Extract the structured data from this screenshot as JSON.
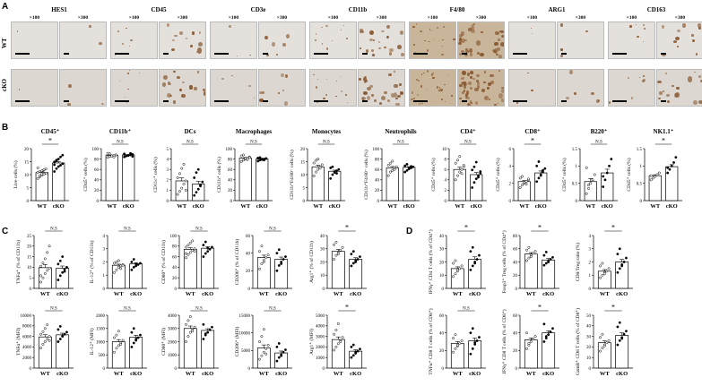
{
  "panels": {
    "A": "A",
    "B": "B",
    "C": "C",
    "D": "D"
  },
  "ihc": {
    "markers": [
      "HES1",
      "CD45",
      "CD3e",
      "CD11b",
      "F4/80",
      "ARG1",
      "CD163"
    ],
    "magnifications": [
      "×100",
      "×300"
    ],
    "rows": [
      "WT",
      "cKO"
    ],
    "colors": {
      "wt_bg": "#e4e1dc",
      "cko_bg": "#dcd7d0",
      "stain": "#8a5a33",
      "dense_bg": "#c9b59a"
    }
  },
  "groups": [
    "WT",
    "cKO"
  ],
  "chart_data": [
    {
      "id": "b1",
      "type": "bar",
      "title": "CD45⁺",
      "ylabel": "Live cells (%)",
      "ylim": [
        0,
        20
      ],
      "yticks": [
        0,
        5,
        10,
        15,
        20
      ],
      "categories": [
        "WT",
        "cKO"
      ],
      "values": [
        10.8,
        14.5
      ],
      "sig": "*",
      "points": [
        [
          8.5,
          9.2,
          9.8,
          10.1,
          10.5,
          10.9,
          11.2,
          11.5,
          11.8,
          12.2,
          12.6,
          9.6,
          10.3,
          11.9
        ],
        [
          11.2,
          12.3,
          13.1,
          13.6,
          14.2,
          14.9,
          15.3,
          16.0,
          16.8,
          17.5,
          13.8,
          15.6
        ]
      ]
    },
    {
      "id": "b2",
      "type": "bar",
      "title": "CD11b⁺",
      "ylabel": "CD45⁺ cells (%)",
      "ylim": [
        0,
        100
      ],
      "yticks": [
        0,
        20,
        40,
        60,
        80,
        100
      ],
      "categories": [
        "WT",
        "cKO"
      ],
      "values": [
        87,
        88
      ],
      "sig": "N.S",
      "points": [
        [
          83,
          85,
          86,
          87,
          88,
          89,
          90,
          86,
          84,
          88,
          91
        ],
        [
          84,
          86,
          87,
          88,
          89,
          90,
          86,
          87,
          91,
          85,
          89
        ]
      ]
    },
    {
      "id": "b3",
      "type": "bar",
      "title": "DCs",
      "ylabel": "CD11c⁺ cells (%)",
      "ylim": [
        0,
        5
      ],
      "yticks": [
        0,
        1,
        2,
        3,
        4,
        5
      ],
      "categories": [
        "WT",
        "cKO"
      ],
      "values": [
        1.9,
        1.6
      ],
      "sig": "N.S",
      "points": [
        [
          0.6,
          0.9,
          1.2,
          1.6,
          1.9,
          2.2,
          2.6,
          3.1,
          3.5,
          1.0
        ],
        [
          0.5,
          0.8,
          1.1,
          1.4,
          1.8,
          2.2,
          2.7,
          3.0,
          1.5
        ]
      ]
    },
    {
      "id": "b4",
      "type": "bar",
      "title": "Macrophages",
      "ylabel": "CD11b⁺ cells (%)",
      "ylim": [
        0,
        100
      ],
      "yticks": [
        0,
        20,
        40,
        60,
        80,
        100
      ],
      "categories": [
        "WT",
        "cKO"
      ],
      "values": [
        82,
        80
      ],
      "sig": "N.S",
      "points": [
        [
          75,
          78,
          80,
          82,
          84,
          86,
          88,
          81,
          79,
          83
        ],
        [
          76,
          78,
          79,
          80,
          81,
          82,
          83,
          80,
          78,
          81
        ]
      ]
    },
    {
      "id": "b5",
      "type": "bar",
      "title": "Monocytes",
      "ylabel": "CD11b⁺F4/80⁻ cells (%)",
      "ylim": [
        0,
        20
      ],
      "yticks": [
        0,
        5,
        10,
        15,
        20
      ],
      "categories": [
        "WT",
        "cKO"
      ],
      "values": [
        13.0,
        11.3
      ],
      "sig": "N.S",
      "points": [
        [
          9.5,
          11,
          12,
          13,
          13.8,
          14.5,
          15.5,
          16,
          12.5
        ],
        [
          8.5,
          10,
          10.8,
          11.5,
          12,
          12.6,
          13,
          11,
          10.5
        ]
      ]
    },
    {
      "id": "b6",
      "type": "bar",
      "title": "Neutrophils",
      "ylabel": "CD11b⁺F4/80⁻ cells (%)",
      "ylim": [
        0,
        100
      ],
      "yticks": [
        0,
        20,
        40,
        60,
        80,
        100
      ],
      "categories": [
        "WT",
        "cKO"
      ],
      "values": [
        63,
        64
      ],
      "sig": "N.S",
      "points": [
        [
          48,
          55,
          58,
          62,
          65,
          68,
          72,
          76,
          60
        ],
        [
          55,
          58,
          61,
          63,
          65,
          67,
          70,
          62,
          66
        ]
      ]
    },
    {
      "id": "b7",
      "type": "bar",
      "title": "CD4⁺",
      "ylabel": "CD45⁺ cells (%)",
      "ylim": [
        0,
        10
      ],
      "yticks": [
        0,
        2,
        4,
        6,
        8,
        10
      ],
      "categories": [
        "WT",
        "cKO"
      ],
      "values": [
        6.0,
        5.0
      ],
      "sig": "N.S",
      "points": [
        [
          4.0,
          4.8,
          5.5,
          6.0,
          6.5,
          7.2,
          7.8,
          8.5,
          5.2,
          6.8
        ],
        [
          2.5,
          3.5,
          4.2,
          4.8,
          5.3,
          5.9,
          6.5,
          7.4,
          4.5,
          5.6
        ]
      ]
    },
    {
      "id": "b8",
      "type": "bar",
      "title": "CD8⁺",
      "ylabel": "CD45⁺ cells (%)",
      "ylim": [
        0,
        6
      ],
      "yticks": [
        0,
        2,
        4,
        6
      ],
      "categories": [
        "WT",
        "cKO"
      ],
      "values": [
        2.2,
        3.2
      ],
      "sig": "*",
      "points": [
        [
          1.5,
          1.8,
          2.0,
          2.2,
          2.4,
          2.6,
          2.8,
          2.1,
          1.9,
          2.5
        ],
        [
          2.2,
          2.6,
          3.0,
          3.3,
          3.7,
          4.0,
          4.5,
          2.9,
          3.5
        ]
      ]
    },
    {
      "id": "b9",
      "type": "bar",
      "title": "B220⁺",
      "ylabel": "CD45⁺ cells (%)",
      "ylim": [
        0,
        1.5
      ],
      "yticks": [
        0,
        0.5,
        1.0,
        1.5
      ],
      "categories": [
        "WT",
        "cKO"
      ],
      "values": [
        0.55,
        0.8
      ],
      "sig": "N.S",
      "points": [
        [
          0.2,
          0.35,
          0.5,
          0.6,
          0.75,
          0.95,
          0.45
        ],
        [
          0.4,
          0.6,
          0.8,
          1.0,
          1.2,
          0.7
        ]
      ]
    },
    {
      "id": "b10",
      "type": "bar",
      "title": "NK1.1⁺",
      "ylabel": "CD45⁺ cells (%)",
      "ylim": [
        0,
        1.5
      ],
      "yticks": [
        0,
        0.5,
        1.0,
        1.5
      ],
      "categories": [
        "WT",
        "cKO"
      ],
      "values": [
        0.72,
        0.98
      ],
      "sig": "*",
      "points": [
        [
          0.6,
          0.65,
          0.7,
          0.75,
          0.8,
          0.72
        ],
        [
          0.8,
          0.9,
          1.0,
          1.1,
          1.25,
          0.95
        ]
      ]
    },
    {
      "id": "c1",
      "type": "bar",
      "ylabel": "TNFα⁺ (% of CD11b)",
      "ylim": [
        0,
        25
      ],
      "yticks": [
        0,
        5,
        10,
        15,
        20,
        25
      ],
      "categories": [
        "WT",
        "cKO"
      ],
      "values": [
        9.8,
        9.5
      ],
      "sig": "N.S",
      "points": [
        [
          3,
          5,
          7,
          8.5,
          9.5,
          10.5,
          12,
          14,
          17,
          20,
          6
        ],
        [
          4,
          6,
          7.5,
          9,
          10,
          11.5,
          13,
          15,
          8
        ]
      ]
    },
    {
      "id": "c2",
      "type": "bar",
      "ylabel": "IL-12⁺ (% of CD11b)",
      "ylim": [
        0,
        4
      ],
      "yticks": [
        0,
        1,
        2,
        3,
        4
      ],
      "categories": [
        "WT",
        "cKO"
      ],
      "values": [
        1.75,
        1.85
      ],
      "sig": "N.S",
      "points": [
        [
          1.2,
          1.4,
          1.6,
          1.7,
          1.8,
          1.9,
          2.0,
          2.1,
          1.5,
          1.75
        ],
        [
          1.4,
          1.6,
          1.7,
          1.8,
          1.9,
          2.0,
          2.2,
          1.85
        ]
      ]
    },
    {
      "id": "c3",
      "type": "bar",
      "ylabel": "CD80⁺ (% of CD11b)",
      "ylim": [
        0,
        100
      ],
      "yticks": [
        0,
        20,
        40,
        60,
        80,
        100
      ],
      "categories": [
        "WT",
        "cKO"
      ],
      "values": [
        74,
        76
      ],
      "sig": "N.S",
      "points": [
        [
          58,
          64,
          68,
          72,
          75,
          78,
          82,
          86,
          90,
          70,
          66
        ],
        [
          60,
          66,
          70,
          74,
          78,
          82,
          88,
          76
        ]
      ]
    },
    {
      "id": "c4",
      "type": "bar",
      "ylabel": "CD206⁺ (% of CD11b)",
      "ylim": [
        0,
        60
      ],
      "yticks": [
        0,
        20,
        40,
        60
      ],
      "categories": [
        "WT",
        "cKO"
      ],
      "values": [
        35,
        33
      ],
      "sig": "N.S",
      "points": [
        [
          22,
          28,
          32,
          35,
          38,
          42,
          48,
          30
        ],
        [
          20,
          26,
          30,
          33,
          36,
          40,
          44,
          28
        ]
      ]
    },
    {
      "id": "c5",
      "type": "bar",
      "ylabel": "Arg1⁺ (% of CD11b)",
      "ylim": [
        0,
        40
      ],
      "yticks": [
        0,
        10,
        20,
        30,
        40
      ],
      "categories": [
        "WT",
        "cKO"
      ],
      "values": [
        28,
        22
      ],
      "sig": "*",
      "points": [
        [
          22,
          25,
          27,
          29,
          31,
          33,
          35,
          26
        ],
        [
          17,
          19,
          21,
          22,
          24,
          26,
          28,
          20
        ]
      ]
    },
    {
      "id": "c6",
      "type": "bar",
      "ylabel": "TNFα⁺ (MFI)",
      "ylim": [
        0,
        10000
      ],
      "yticks": [
        0,
        2000,
        4000,
        6000,
        8000,
        10000
      ],
      "categories": [
        "WT",
        "cKO"
      ],
      "values": [
        5900,
        6300
      ],
      "sig": "N.S",
      "points": [
        [
          3800,
          4500,
          5000,
          5500,
          6000,
          6400,
          6900,
          7500,
          8200,
          5200
        ],
        [
          5000,
          5500,
          6000,
          6400,
          6800,
          7300,
          7900,
          6100
        ]
      ]
    },
    {
      "id": "c7",
      "type": "bar",
      "ylabel": "IL-12⁺ (MFI)",
      "ylim": [
        0,
        2000
      ],
      "yticks": [
        0,
        500,
        1000,
        1500,
        2000
      ],
      "categories": [
        "WT",
        "cKO"
      ],
      "values": [
        1000,
        1170
      ],
      "sig": "N.S",
      "points": [
        [
          600,
          750,
          850,
          950,
          1050,
          1150,
          1250,
          1400,
          900
        ],
        [
          800,
          950,
          1050,
          1150,
          1250,
          1350,
          1500,
          1100
        ]
      ]
    },
    {
      "id": "c8",
      "type": "bar",
      "ylabel": "CD80⁺ (MFI)",
      "ylim": [
        0,
        4000
      ],
      "yticks": [
        0,
        1000,
        2000,
        3000,
        4000
      ],
      "categories": [
        "WT",
        "cKO"
      ],
      "values": [
        3000,
        2850
      ],
      "sig": "N.S",
      "points": [
        [
          2000,
          2400,
          2700,
          2900,
          3100,
          3300,
          3600,
          3900,
          2800
        ],
        [
          2200,
          2500,
          2700,
          2900,
          3100,
          3300,
          2600
        ]
      ]
    },
    {
      "id": "c9",
      "type": "bar",
      "ylabel": "CD206⁺ (MFI)",
      "ylim": [
        0,
        15000
      ],
      "yticks": [
        0,
        5000,
        10000,
        15000
      ],
      "categories": [
        "WT",
        "cKO"
      ],
      "values": [
        5700,
        4300
      ],
      "sig": "N.S",
      "points": [
        [
          2500,
          3500,
          4500,
          5500,
          6500,
          7500,
          9000,
          11000,
          4000
        ],
        [
          2000,
          3000,
          3800,
          4500,
          5200,
          6000,
          7000,
          3500
        ]
      ]
    },
    {
      "id": "c10",
      "type": "bar",
      "ylabel": "Arg1⁺ (MFI)",
      "ylim": [
        0,
        5000
      ],
      "yticks": [
        0,
        1000,
        2000,
        3000,
        4000,
        5000
      ],
      "categories": [
        "WT",
        "cKO"
      ],
      "values": [
        2700,
        1600
      ],
      "sig": "*",
      "points": [
        [
          1700,
          2000,
          2300,
          2600,
          2900,
          3200,
          3600,
          4200,
          2500
        ],
        [
          1000,
          1200,
          1400,
          1600,
          1800,
          2000,
          2200,
          1500
        ]
      ]
    },
    {
      "id": "d1",
      "type": "bar",
      "ylabel": "IFNγ⁺ CD4 T cells (% of CD4⁺)",
      "ylim": [
        0,
        40
      ],
      "yticks": [
        0,
        10,
        20,
        30,
        40
      ],
      "categories": [
        "WT",
        "cKO"
      ],
      "values": [
        15,
        22
      ],
      "sig": "*",
      "points": [
        [
          9,
          11,
          13,
          15,
          17,
          19,
          21,
          14
        ],
        [
          14,
          17,
          20,
          22,
          25,
          28,
          31,
          19
        ]
      ]
    },
    {
      "id": "d2",
      "type": "bar",
      "ylabel": "Foxp3⁺ Treg cells (% of CD4⁺)",
      "ylim": [
        0,
        80
      ],
      "yticks": [
        0,
        20,
        40,
        60,
        80
      ],
      "categories": [
        "WT",
        "cKO"
      ],
      "values": [
        52,
        43
      ],
      "sig": "*",
      "points": [
        [
          42,
          46,
          50,
          53,
          56,
          58,
          62,
          48
        ],
        [
          35,
          38,
          41,
          44,
          47,
          50,
          55,
          40
        ]
      ]
    },
    {
      "id": "d3",
      "type": "bar",
      "ylabel": "CD8/Treg ratio (%)",
      "ylim": [
        0,
        4
      ],
      "yticks": [
        0,
        1,
        2,
        3,
        4
      ],
      "categories": [
        "WT",
        "cKO"
      ],
      "values": [
        1.3,
        2.0
      ],
      "sig": "*",
      "points": [
        [
          0.8,
          1.0,
          1.2,
          1.3,
          1.5,
          1.7,
          1.9,
          1.1
        ],
        [
          1.2,
          1.5,
          1.8,
          2.0,
          2.3,
          2.6,
          3.0,
          1.7
        ]
      ]
    },
    {
      "id": "d4",
      "type": "bar",
      "ylabel": "TNFα⁺ CD8 T cells (% of CD8⁺)",
      "ylim": [
        0,
        60
      ],
      "yticks": [
        0,
        20,
        40,
        60
      ],
      "categories": [
        "WT",
        "cKO"
      ],
      "values": [
        28,
        31
      ],
      "sig": "N.S",
      "points": [
        [
          18,
          22,
          25,
          28,
          31,
          34,
          38,
          26
        ],
        [
          16,
          22,
          27,
          31,
          35,
          40,
          45,
          29
        ]
      ]
    },
    {
      "id": "d5",
      "type": "bar",
      "ylabel": "IFNγ⁺ CD8 T cells (% of CD8⁺)",
      "ylim": [
        0,
        60
      ],
      "yticks": [
        0,
        20,
        40,
        60
      ],
      "categories": [
        "WT",
        "cKO"
      ],
      "values": [
        32,
        40
      ],
      "sig": "*",
      "points": [
        [
          22,
          26,
          30,
          33,
          36,
          40,
          28
        ],
        [
          30,
          34,
          38,
          41,
          45,
          50,
          36
        ]
      ]
    },
    {
      "id": "d6",
      "type": "bar",
      "ylabel": "GzmB⁺ CD8 T cells (% of CD8⁺)",
      "ylim": [
        0,
        50
      ],
      "yticks": [
        0,
        10,
        20,
        30,
        40,
        50
      ],
      "categories": [
        "WT",
        "cKO"
      ],
      "values": [
        24,
        31
      ],
      "sig": "*",
      "points": [
        [
          16,
          19,
          22,
          24,
          26,
          29,
          32,
          21
        ],
        [
          22,
          26,
          29,
          32,
          35,
          39,
          43,
          28
        ]
      ]
    }
  ]
}
